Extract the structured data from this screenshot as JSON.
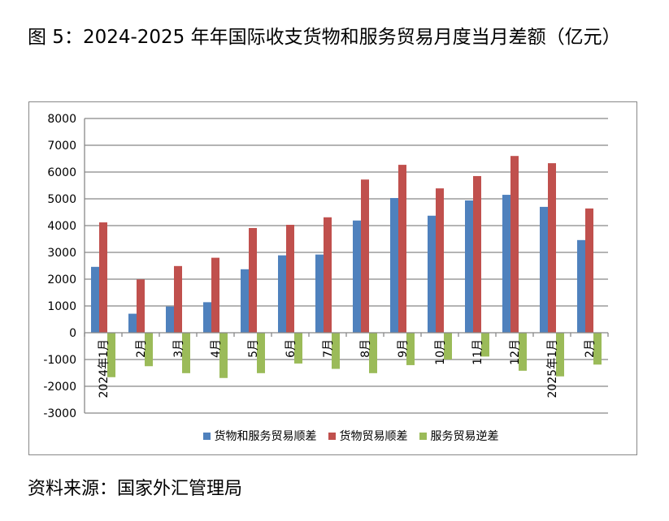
{
  "title": "图 5：2024-2025 年年国际收支货物和服务贸易月度当月差额（亿元）",
  "source": "资料来源：国家外汇管理局",
  "chart_data": {
    "type": "bar",
    "title": "",
    "xlabel": "",
    "ylabel": "",
    "ylim": [
      -3000,
      8000
    ],
    "yticks": [
      "8000",
      "7000",
      "6000",
      "5000",
      "4000",
      "3000",
      "2000",
      "1000",
      "0",
      "-1000",
      "-2000",
      "-3000"
    ],
    "grid": true,
    "legend": "bottom",
    "categories": [
      "2024年1月",
      "2月",
      "3月",
      "4月",
      "5月",
      "6月",
      "7月",
      "8月",
      "9月",
      "10月",
      "11月",
      "12月",
      "2025年1月",
      "2月"
    ],
    "series": [
      {
        "name": "货物和服务贸易顺差",
        "color": "#4F81BD",
        "values": [
          2460,
          710,
          980,
          1140,
          2370,
          2890,
          2920,
          4190,
          5030,
          4370,
          4940,
          5150,
          4700,
          3460
        ]
      },
      {
        "name": "货物贸易顺差",
        "color": "#C0504D",
        "values": [
          4120,
          1990,
          2490,
          2800,
          3910,
          4030,
          4310,
          5720,
          6270,
          5390,
          5850,
          6600,
          6330,
          4640
        ]
      },
      {
        "name": "服务贸易逆差",
        "color": "#9BBB59",
        "values": [
          -1660,
          -1250,
          -1510,
          -1690,
          -1510,
          -1150,
          -1350,
          -1510,
          -1210,
          -1000,
          -890,
          -1420,
          -1630,
          -1190
        ]
      }
    ]
  }
}
